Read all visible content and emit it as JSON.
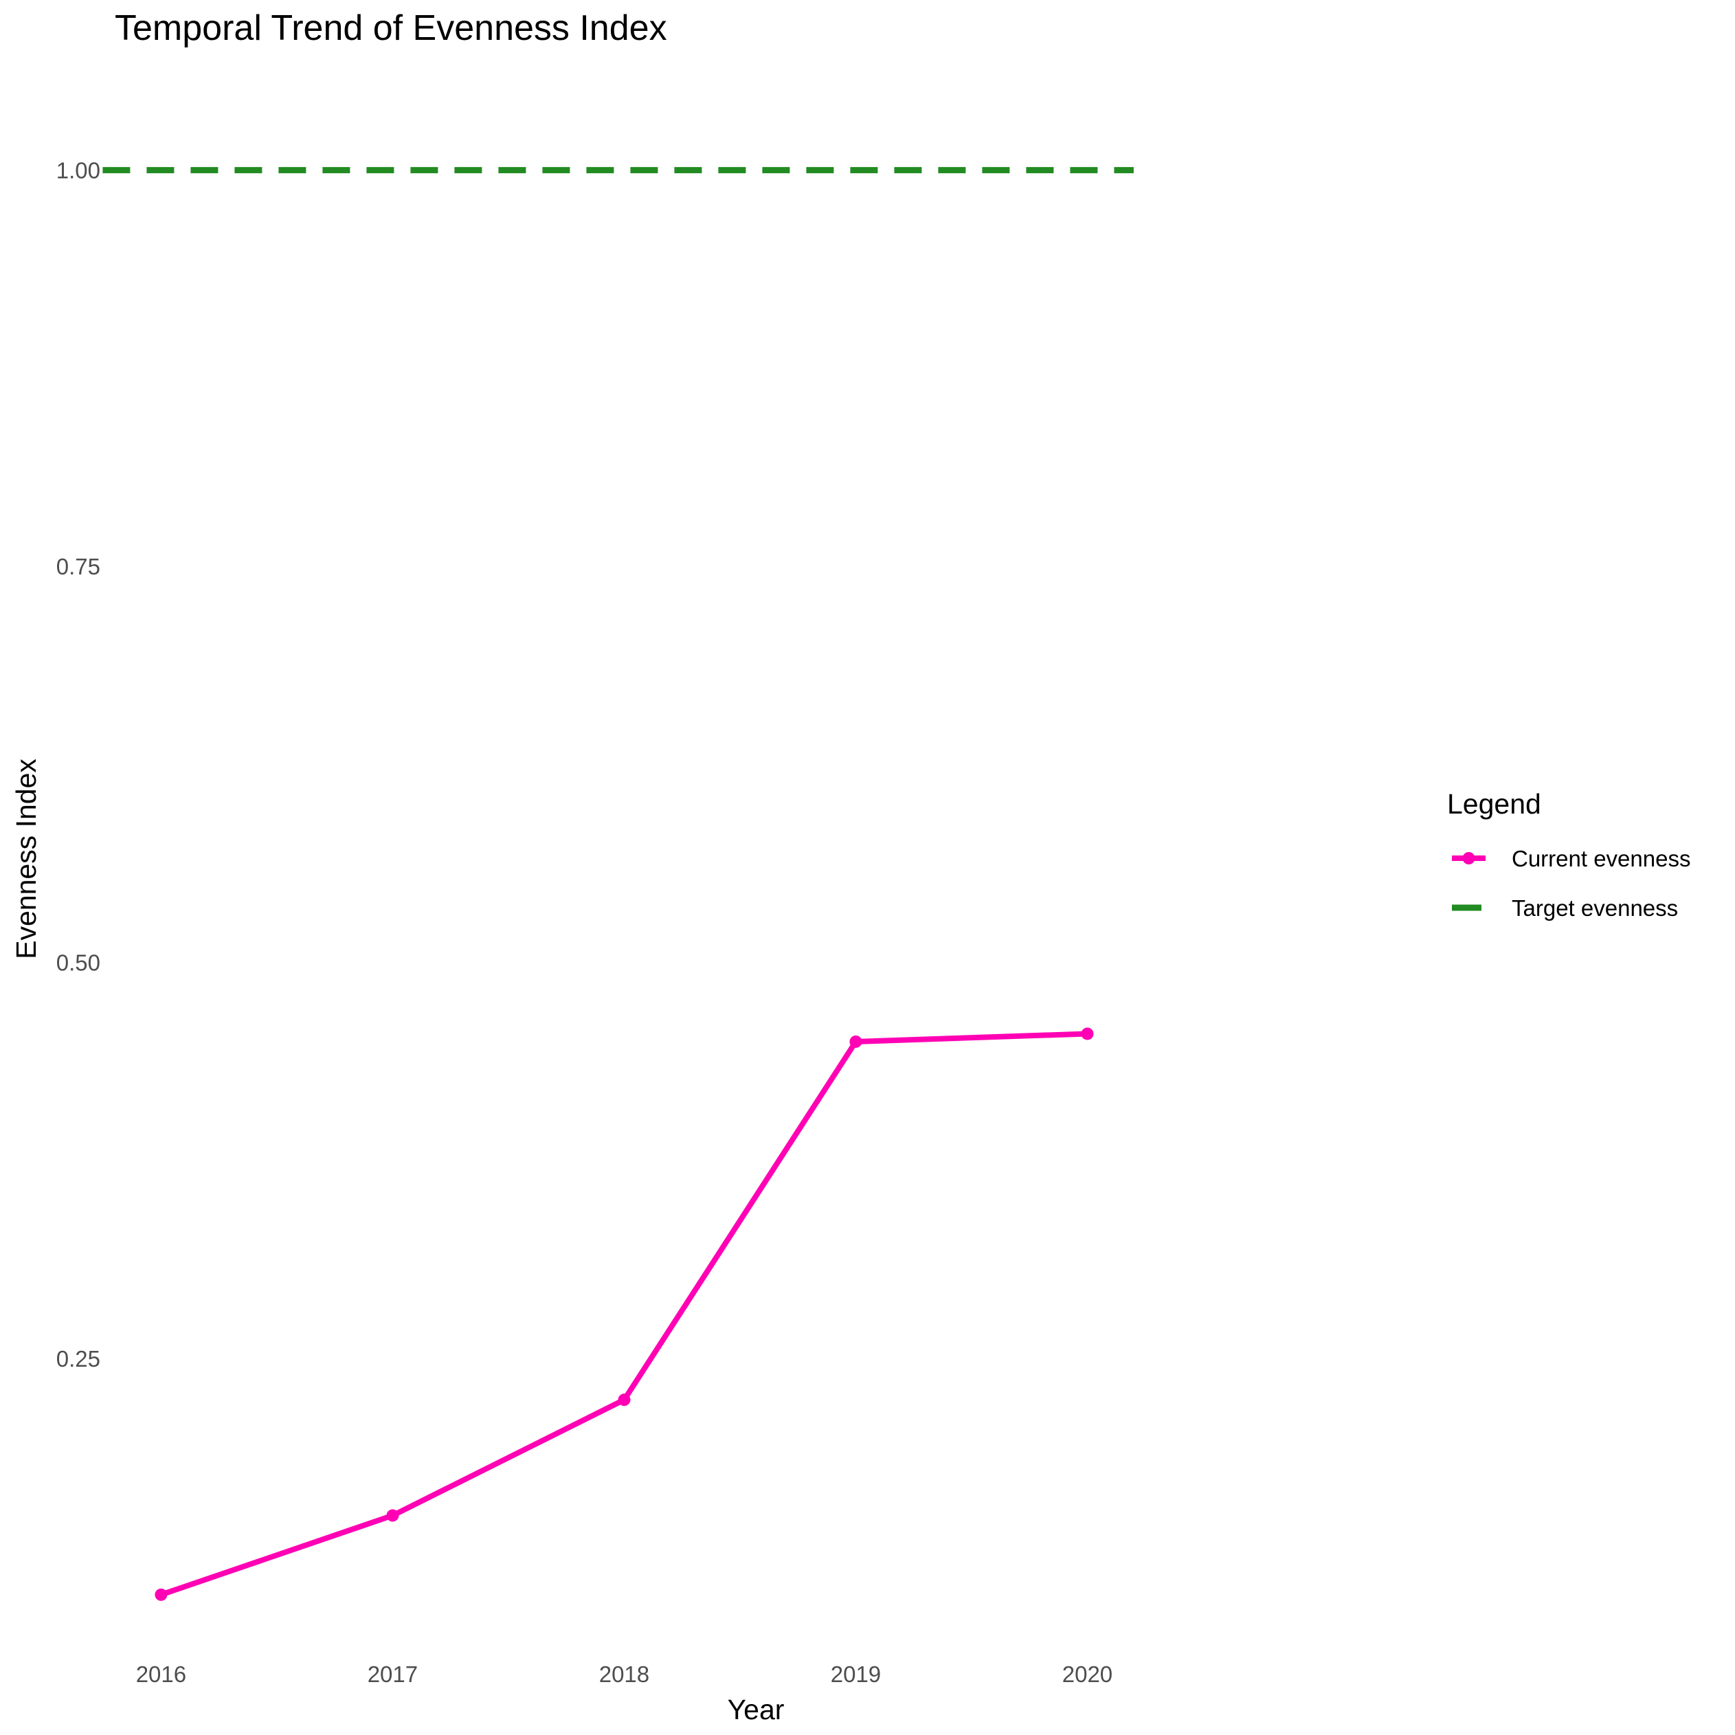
{
  "chart_data": {
    "type": "line",
    "title": "Temporal Trend of Evenness Index",
    "xlabel": "Year",
    "ylabel": "Evenness Index",
    "x": [
      2016,
      2017,
      2018,
      2019,
      2020
    ],
    "x_tick_labels": [
      "2016",
      "2017",
      "2018",
      "2019",
      "2020"
    ],
    "y_ticks": [
      0.25,
      0.5,
      0.75,
      1.0
    ],
    "y_tick_labels": [
      "0.25",
      "0.50",
      "0.75",
      "1.00"
    ],
    "xlim": [
      2015.8,
      2021.5
    ],
    "ylim": [
      0.058,
      1.064
    ],
    "grid": false,
    "legend": {
      "title": "Legend",
      "position": "right"
    },
    "series": [
      {
        "name": "Current evenness",
        "style": "line-with-points",
        "color": "#ff00b4",
        "values": [
          0.101,
          0.151,
          0.224,
          0.45,
          0.455
        ]
      },
      {
        "name": "Target evenness",
        "style": "dashed-line",
        "color": "#228b22",
        "value": 1.0,
        "x_range": [
          2016,
          2020.2
        ]
      }
    ]
  }
}
